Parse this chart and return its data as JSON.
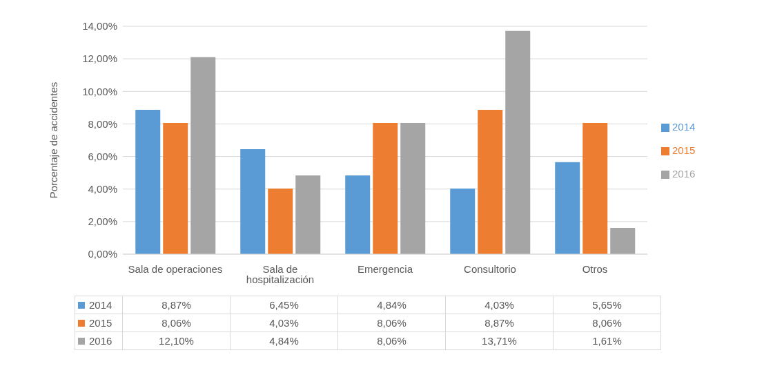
{
  "chart_data": {
    "type": "bar",
    "ylabel": "Porcentaje de accidentes",
    "categories": [
      "Sala de operaciones",
      "Sala de hospitalización",
      "Emergencia",
      "Consultorio",
      "Otros"
    ],
    "series": [
      {
        "name": "2014",
        "color": "#5b9bd5",
        "values": [
          8.87,
          6.45,
          4.84,
          4.03,
          5.65
        ],
        "value_labels": [
          "8,87%",
          "6,45%",
          "4,84%",
          "4,03%",
          "5,65%"
        ]
      },
      {
        "name": "2015",
        "color": "#ed7d31",
        "values": [
          8.06,
          4.03,
          8.06,
          8.87,
          8.06
        ],
        "value_labels": [
          "8,06%",
          "4,03%",
          "8,06%",
          "8,87%",
          "8,06%"
        ]
      },
      {
        "name": "2016",
        "color": "#a5a5a5",
        "values": [
          12.1,
          4.84,
          8.06,
          13.71,
          1.61
        ],
        "value_labels": [
          "12,10%",
          "4,84%",
          "8,06%",
          "13,71%",
          "1,61%"
        ]
      }
    ],
    "ylim": [
      0,
      14
    ],
    "yticks": [
      {
        "value": 0,
        "label": "0,00%"
      },
      {
        "value": 2,
        "label": "2,00%"
      },
      {
        "value": 4,
        "label": "4,00%"
      },
      {
        "value": 6,
        "label": "6,00%"
      },
      {
        "value": 8,
        "label": "8,00%"
      },
      {
        "value": 10,
        "label": "10,00%"
      },
      {
        "value": 12,
        "label": "12,00%"
      },
      {
        "value": 14,
        "label": "14,00%"
      }
    ],
    "grid": "y",
    "legend": "right"
  }
}
